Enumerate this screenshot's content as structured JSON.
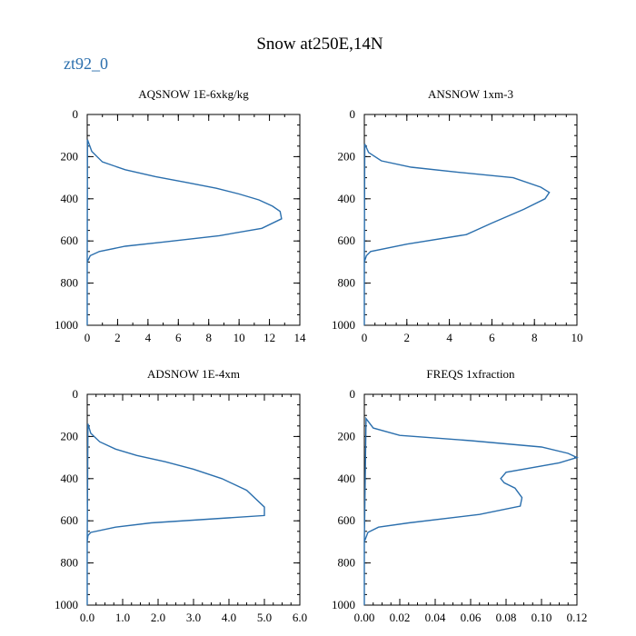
{
  "figure": {
    "title": "Snow at250E,14N",
    "legend": "zt92_0",
    "series_color": "#2b6fad"
  },
  "chart_data": [
    {
      "type": "line",
      "title": "AQSNOW  1E-6xkg/kg",
      "xlabel": "",
      "ylabel": "",
      "xlim": [
        0,
        14
      ],
      "ylim": [
        1000,
        0
      ],
      "xticks": [
        0,
        2,
        4,
        6,
        8,
        10,
        12,
        14
      ],
      "xtick_labels": [
        "0",
        "2",
        "4",
        "6",
        "8",
        "10",
        "12",
        "14"
      ],
      "xminor": 1,
      "yticks": [
        0,
        200,
        400,
        600,
        800,
        1000
      ],
      "ytick_labels": [
        "0",
        "200",
        "400",
        "600",
        "800",
        "1000"
      ],
      "yminor": 50,
      "series": [
        {
          "name": "zt92_0",
          "x": [
            0,
            0,
            0.02,
            0.3,
            1.0,
            2.5,
            4.5,
            6.5,
            8.5,
            10,
            11.3,
            12.2,
            12.7,
            12.8,
            11.5,
            8.7,
            5.0,
            2.5,
            0.8,
            0.2,
            0,
            0
          ],
          "y": [
            1000,
            700,
            120,
            175,
            225,
            262,
            295,
            322,
            350,
            377,
            405,
            435,
            460,
            495,
            540,
            575,
            605,
            625,
            650,
            670,
            700,
            1000
          ]
        }
      ]
    },
    {
      "type": "line",
      "title": "ANSNOW  1xm-3",
      "xlabel": "",
      "ylabel": "",
      "xlim": [
        0,
        10
      ],
      "ylim": [
        1000,
        0
      ],
      "xticks": [
        0,
        2,
        4,
        6,
        8,
        10
      ],
      "xtick_labels": [
        "0",
        "2",
        "4",
        "6",
        "8",
        "10"
      ],
      "xminor": 0.5,
      "yticks": [
        0,
        200,
        400,
        600,
        800,
        1000
      ],
      "ytick_labels": [
        "0",
        "200",
        "400",
        "600",
        "800",
        "1000"
      ],
      "yminor": 50,
      "series": [
        {
          "name": "zt92_0",
          "x": [
            0,
            0,
            0.02,
            0.2,
            0.8,
            2.2,
            4.5,
            7.0,
            8.3,
            8.7,
            8.5,
            7.5,
            6.0,
            4.8,
            2.0,
            0.3,
            0.1,
            0,
            0
          ],
          "y": [
            1000,
            700,
            140,
            180,
            220,
            250,
            275,
            300,
            345,
            370,
            400,
            450,
            515,
            570,
            615,
            650,
            670,
            700,
            1000
          ]
        }
      ]
    },
    {
      "type": "line",
      "title": "ADSNOW  1E-4xm",
      "xlabel": "",
      "ylabel": "",
      "xlim": [
        0,
        6
      ],
      "ylim": [
        1000,
        0
      ],
      "xticks": [
        0,
        1,
        2,
        3,
        4,
        5,
        6
      ],
      "xtick_labels": [
        "0.0",
        "1.0",
        "2.0",
        "3.0",
        "4.0",
        "5.0",
        "6.0"
      ],
      "xminor": 0.25,
      "yticks": [
        0,
        200,
        400,
        600,
        800,
        1000
      ],
      "ytick_labels": [
        "0",
        "200",
        "400",
        "600",
        "800",
        "1000"
      ],
      "yminor": 50,
      "series": [
        {
          "name": "zt92_0",
          "x": [
            0,
            0,
            0.02,
            0.1,
            0.35,
            0.8,
            1.4,
            2.2,
            3.0,
            3.8,
            4.5,
            5.0,
            5.0,
            1.8,
            0.8,
            0.1,
            0.02,
            0,
            0
          ],
          "y": [
            1000,
            700,
            140,
            185,
            225,
            260,
            290,
            320,
            355,
            400,
            455,
            535,
            575,
            610,
            630,
            655,
            670,
            700,
            1000
          ]
        }
      ]
    },
    {
      "type": "line",
      "title": "FREQS  1xfraction",
      "xlabel": "",
      "ylabel": "",
      "xlim": [
        0,
        0.12
      ],
      "ylim": [
        1000,
        0
      ],
      "xticks": [
        0,
        0.02,
        0.04,
        0.06,
        0.08,
        0.1,
        0.12
      ],
      "xtick_labels": [
        "0.00",
        "0.02",
        "0.04",
        "0.06",
        "0.08",
        "0.10",
        "0.12"
      ],
      "xminor": 0.005,
      "yticks": [
        0,
        200,
        400,
        600,
        800,
        1000
      ],
      "ytick_labels": [
        "0",
        "200",
        "400",
        "600",
        "800",
        "1000"
      ],
      "yminor": 50,
      "series": [
        {
          "name": "zt92_0",
          "x": [
            0,
            0,
            0.001,
            0.005,
            0.02,
            0.06,
            0.1,
            0.115,
            0.12,
            0.11,
            0.08,
            0.077,
            0.079,
            0.085,
            0.089,
            0.088,
            0.065,
            0.025,
            0.008,
            0.002,
            0,
            0
          ],
          "y": [
            1000,
            700,
            115,
            160,
            195,
            220,
            250,
            280,
            300,
            325,
            370,
            400,
            420,
            445,
            490,
            530,
            570,
            610,
            630,
            655,
            700,
            1000
          ]
        }
      ]
    }
  ]
}
